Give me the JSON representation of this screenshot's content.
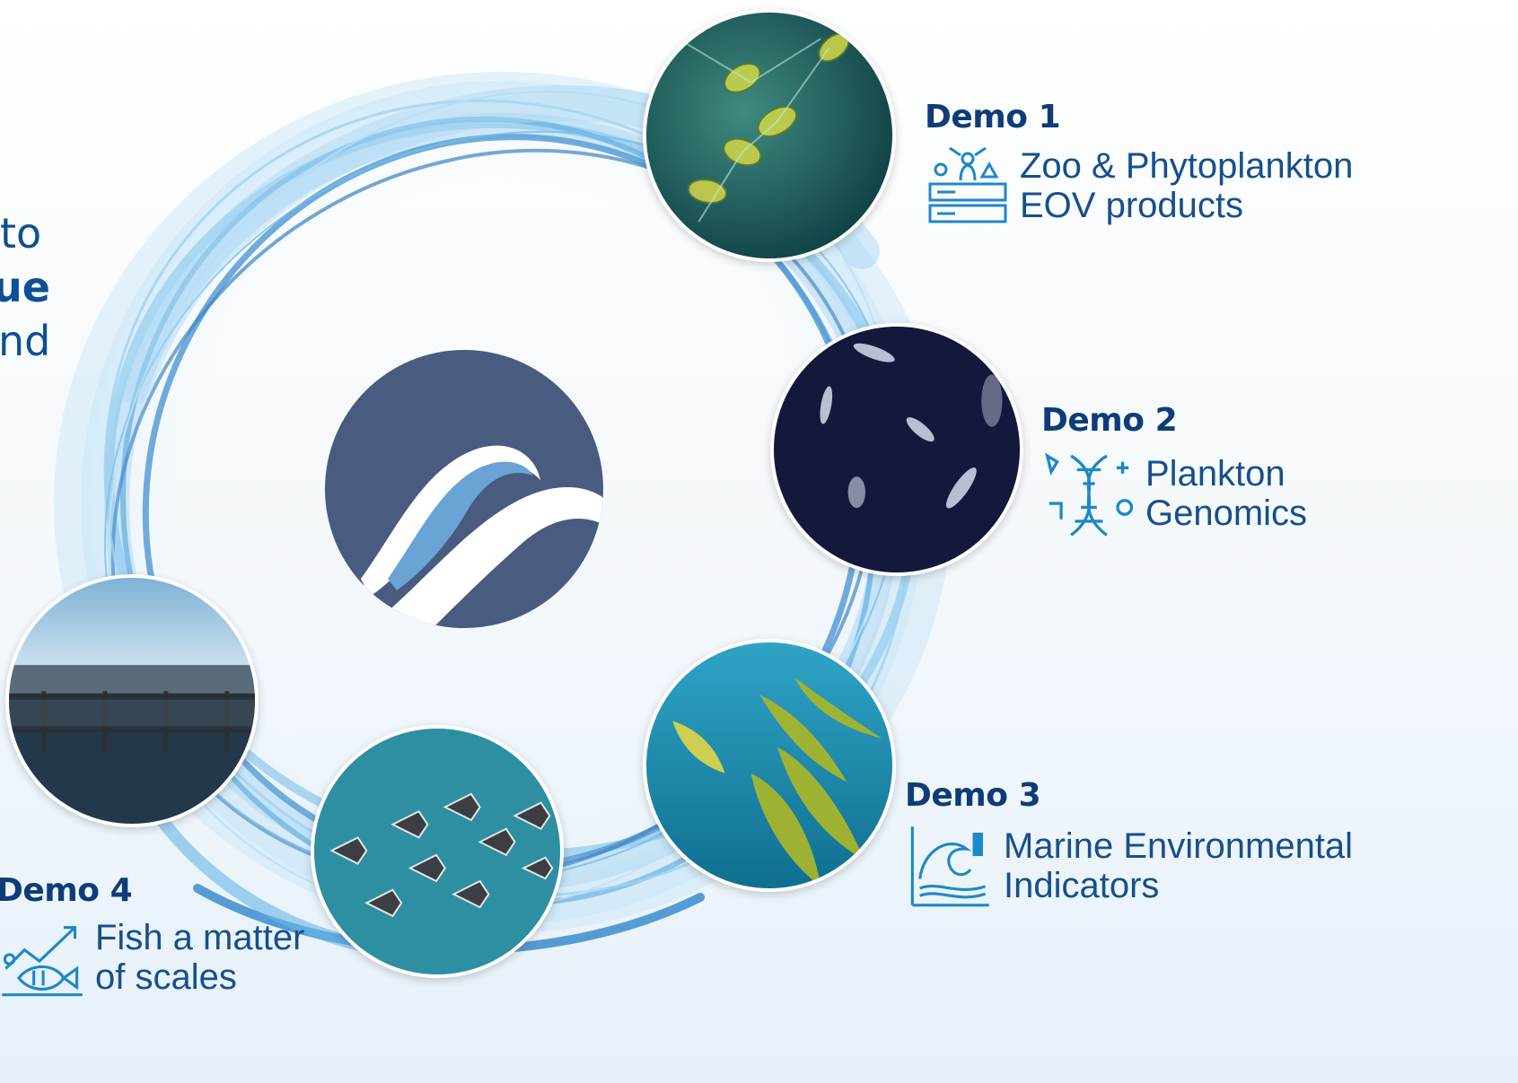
{
  "left_text": {
    "line1": "to",
    "line2": "ue",
    "line3": "nd"
  },
  "demos": [
    {
      "title": "Demo 1",
      "line1": "Zoo & Phytoplankton",
      "line2": "EOV products",
      "icon": "plankton-database-icon"
    },
    {
      "title": "Demo 2",
      "line1": "Plankton",
      "line2": "Genomics",
      "icon": "dna-genomics-icon"
    },
    {
      "title": "Demo 3",
      "line1": "Marine Environmental",
      "line2": "Indicators",
      "icon": "wave-chart-icon"
    },
    {
      "title": "Demo 4",
      "line1": "Fish a matter",
      "line2": "of scales",
      "icon": "fish-chart-icon"
    }
  ],
  "colors": {
    "title": "#0e3c78",
    "text": "#164f8c",
    "logo": "#4a5b80",
    "logo_wave": "#6aa3d6",
    "ring": "#3b8fd1"
  }
}
